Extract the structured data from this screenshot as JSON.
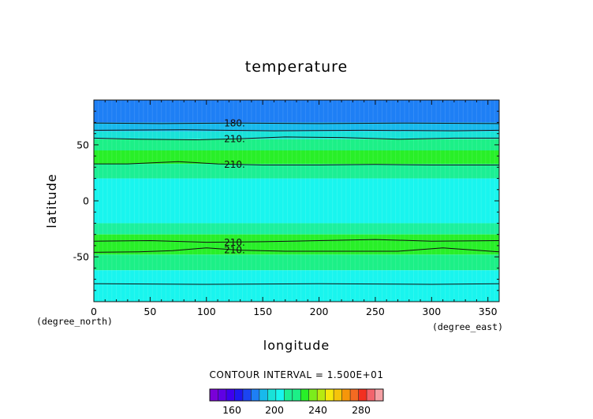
{
  "chart_data": {
    "type": "heatmap",
    "title": "temperature",
    "xlabel": "longitude",
    "ylabel": "latitude",
    "x_units": "(degree_east)",
    "y_units": "(degree_north)",
    "xlim": [
      0,
      360
    ],
    "ylim": [
      -90,
      90
    ],
    "xticks": [
      0,
      50,
      100,
      150,
      200,
      250,
      300,
      350
    ],
    "yticks": [
      -50,
      0,
      50
    ],
    "bands": [
      {
        "lat_min": 70,
        "lat_max": 90,
        "color": "#1e7ff5"
      },
      {
        "lat_min": 62,
        "lat_max": 70,
        "color": "#18b9ec"
      },
      {
        "lat_min": 55,
        "lat_max": 62,
        "color": "#19e2d8"
      },
      {
        "lat_min": 45,
        "lat_max": 55,
        "color": "#1cf087"
      },
      {
        "lat_min": 33,
        "lat_max": 45,
        "color": "#28ef28"
      },
      {
        "lat_min": 20,
        "lat_max": 33,
        "color": "#1cef94"
      },
      {
        "lat_min": -20,
        "lat_max": 20,
        "color": "#19f5ee"
      },
      {
        "lat_min": -30,
        "lat_max": -20,
        "color": "#1cf09d"
      },
      {
        "lat_min": -48,
        "lat_max": -30,
        "color": "#28ef28"
      },
      {
        "lat_min": -62,
        "lat_max": -48,
        "color": "#1cf087"
      },
      {
        "lat_min": -90,
        "lat_max": -62,
        "color": "#19f5ee"
      }
    ],
    "contours": [
      {
        "label": "180.",
        "points": [
          [
            0,
            69.5
          ],
          [
            60,
            69
          ],
          [
            130,
            69.5
          ],
          [
            200,
            69
          ],
          [
            280,
            69.5
          ],
          [
            360,
            69
          ]
        ]
      },
      {
        "label": "",
        "points": [
          [
            0,
            63
          ],
          [
            80,
            63.5
          ],
          [
            160,
            62.5
          ],
          [
            240,
            63
          ],
          [
            320,
            62.5
          ],
          [
            360,
            63
          ]
        ]
      },
      {
        "label": "210.",
        "points": [
          [
            0,
            56
          ],
          [
            40,
            55
          ],
          [
            90,
            54.5
          ],
          [
            130,
            55.5
          ],
          [
            170,
            57
          ],
          [
            220,
            56.5
          ],
          [
            270,
            55
          ],
          [
            320,
            56
          ],
          [
            360,
            56
          ]
        ]
      },
      {
        "label": "210.",
        "points": [
          [
            0,
            33
          ],
          [
            30,
            33
          ],
          [
            75,
            35
          ],
          [
            110,
            33
          ],
          [
            150,
            32
          ],
          [
            200,
            32
          ],
          [
            250,
            32.5
          ],
          [
            300,
            32
          ],
          [
            360,
            32
          ]
        ]
      },
      {
        "label": "210.",
        "points": [
          [
            0,
            -36
          ],
          [
            50,
            -35.5
          ],
          [
            100,
            -37
          ],
          [
            150,
            -36.5
          ],
          [
            200,
            -35.5
          ],
          [
            250,
            -34.5
          ],
          [
            300,
            -36
          ],
          [
            360,
            -35.5
          ]
        ]
      },
      {
        "label": "210.",
        "points": [
          [
            0,
            -46
          ],
          [
            40,
            -45.5
          ],
          [
            70,
            -44.5
          ],
          [
            100,
            -42
          ],
          [
            130,
            -44
          ],
          [
            170,
            -45
          ],
          [
            220,
            -45
          ],
          [
            270,
            -45
          ],
          [
            310,
            -42
          ],
          [
            360,
            -45.5
          ]
        ]
      },
      {
        "label": "",
        "points": [
          [
            0,
            -74
          ],
          [
            100,
            -74.5
          ],
          [
            200,
            -74
          ],
          [
            300,
            -74.5
          ],
          [
            360,
            -74
          ]
        ]
      }
    ]
  },
  "contour_info": "CONTOUR INTERVAL = 1.500E+01",
  "colorbar": {
    "ticks": [
      "160",
      "200",
      "240",
      "280"
    ],
    "colors": [
      "#7a00d8",
      "#5f00e4",
      "#3e00ee",
      "#1e18f0",
      "#1b45f2",
      "#1e7ff5",
      "#18b9ec",
      "#19e2d8",
      "#19f5ee",
      "#1cef94",
      "#1cf087",
      "#28ef28",
      "#7cec1c",
      "#b8ea10",
      "#f6e80c",
      "#f6c40a",
      "#f6960a",
      "#f46a22",
      "#f23020",
      "#f2646c",
      "#f4a0a4"
    ]
  }
}
